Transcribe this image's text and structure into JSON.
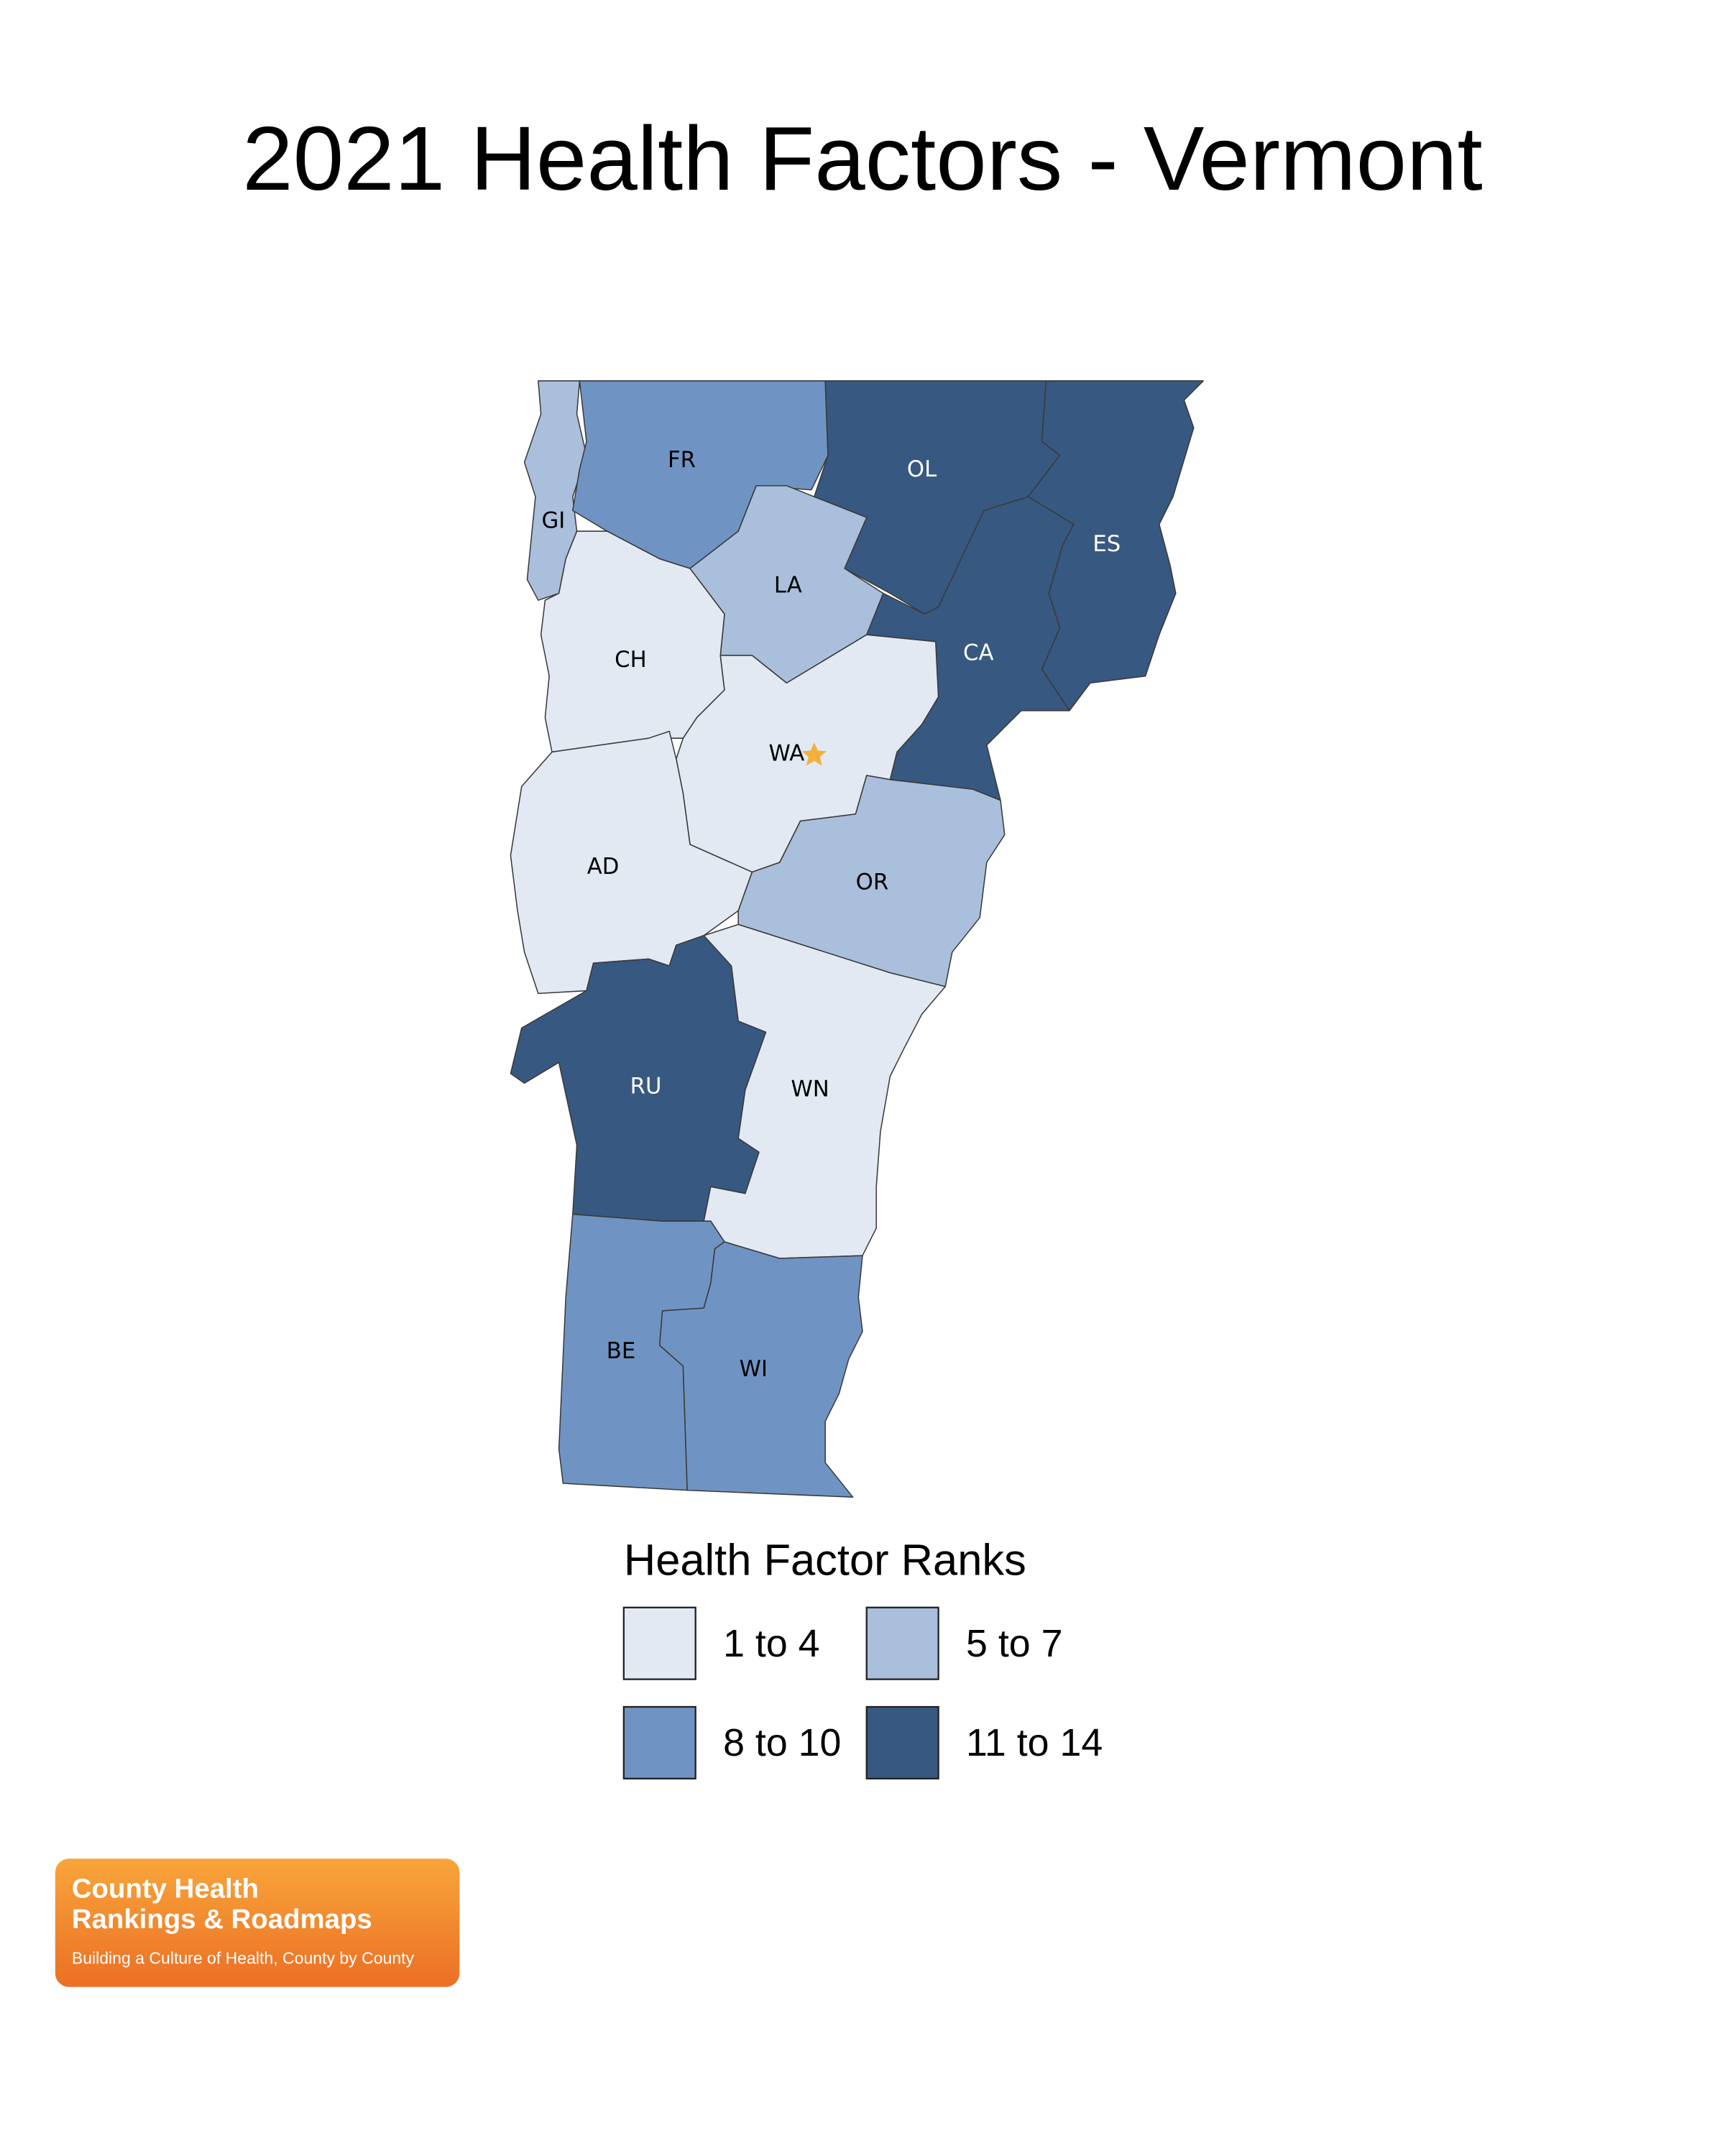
{
  "title": "2021 Health Factors - Vermont",
  "counties": [
    {
      "label": "GI",
      "color": "#a9bfdb"
    },
    {
      "label": "FR",
      "color": "#6f94c3"
    },
    {
      "label": "OL",
      "color": "#375880"
    },
    {
      "label": "ES",
      "color": "#375880"
    },
    {
      "label": "CA",
      "color": "#375880"
    },
    {
      "label": "LA",
      "color": "#a9bfdb"
    },
    {
      "label": "CH",
      "color": "#e2e9f3"
    },
    {
      "label": "WA",
      "color": "#e2e9f3"
    },
    {
      "label": "AD",
      "color": "#e2e9f3"
    },
    {
      "label": "OR",
      "color": "#a9bfdb"
    },
    {
      "label": "RU",
      "color": "#375880"
    },
    {
      "label": "WN",
      "color": "#e2e9f3"
    },
    {
      "label": "BE",
      "color": "#6f94c3"
    },
    {
      "label": "WI",
      "color": "#6f94c3"
    }
  ],
  "legend": {
    "title": "Health Factor Ranks",
    "classes": [
      {
        "label": "1 to 4",
        "color": "#e2e9f3"
      },
      {
        "label": "5 to 7",
        "color": "#a9bfdb"
      },
      {
        "label": "8 to 10",
        "color": "#6f94c3"
      },
      {
        "label": "11 to 14",
        "color": "#375880"
      }
    ]
  },
  "logo": {
    "line1": "County Health",
    "line2": "Rankings & Roadmaps",
    "tagline": "Building a Culture of Health, County by County"
  }
}
